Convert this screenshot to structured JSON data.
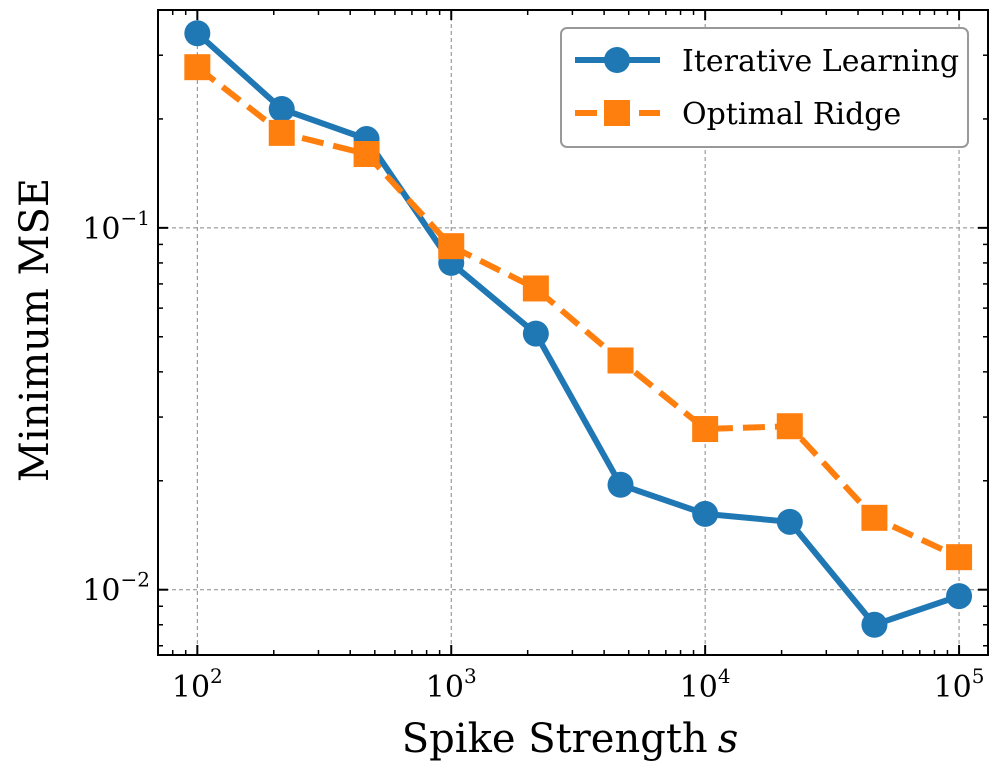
{
  "chart_data": {
    "type": "line",
    "title": "",
    "xlabel": "Spike Strength",
    "xlabel_var": "s",
    "ylabel": "Minimum MSE",
    "xscale": "log",
    "yscale": "log",
    "xlim": [
      70,
      130000
    ],
    "ylim": [
      0.0066,
      0.4
    ],
    "grid": true,
    "legend_position": "top-right",
    "x_ticks": [
      {
        "value": 100,
        "base": "10",
        "exp": "2"
      },
      {
        "value": 1000,
        "base": "10",
        "exp": "3"
      },
      {
        "value": 10000,
        "base": "10",
        "exp": "4"
      },
      {
        "value": 100000,
        "base": "10",
        "exp": "5"
      }
    ],
    "y_ticks": [
      {
        "value": 0.1,
        "base": "10",
        "exp": "−1"
      },
      {
        "value": 0.01,
        "base": "10",
        "exp": "−2"
      }
    ],
    "x": [
      100,
      215,
      464,
      1000,
      2154,
      4642,
      10000,
      21544,
      46416,
      100000
    ],
    "series": [
      {
        "name": "Iterative Learning",
        "color": "#1f77b4",
        "marker": "circle",
        "linestyle": "solid",
        "values": [
          0.345,
          0.213,
          0.176,
          0.08,
          0.051,
          0.0195,
          0.0162,
          0.0154,
          0.008,
          0.0096
        ]
      },
      {
        "name": "Optimal Ridge",
        "color": "#ff7f0e",
        "marker": "square",
        "linestyle": "dashed",
        "values": [
          0.278,
          0.183,
          0.16,
          0.089,
          0.068,
          0.043,
          0.0278,
          0.0283,
          0.0158,
          0.0123
        ]
      }
    ]
  }
}
